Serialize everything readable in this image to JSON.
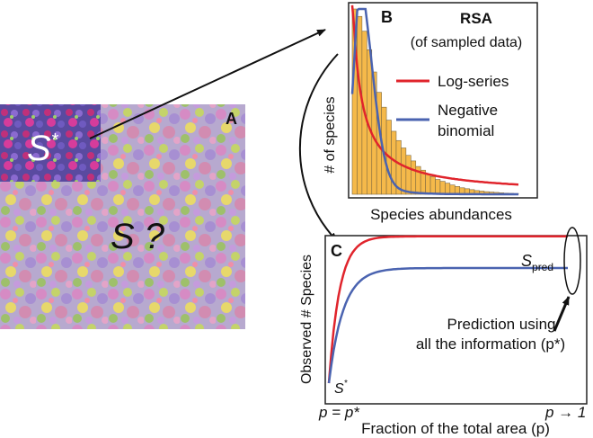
{
  "panel_a": {
    "label": "A",
    "subarea_symbol": "S",
    "subarea_superscript": "*",
    "total_symbol": "S ?"
  },
  "panel_b": {
    "label": "B",
    "title": "RSA",
    "subtitle": "(of sampled data)",
    "ylabel": "# of species",
    "xlabel": "Species abundances",
    "legend": [
      {
        "name": "Log-series",
        "color": "#e0242c"
      },
      {
        "name": "Negative binomial",
        "color": "#4a63b0",
        "line1": "Negative",
        "line2": "binomial"
      }
    ],
    "bar_color": "#f5b94a",
    "bar_heights": [
      1.0,
      0.96,
      0.88,
      0.78,
      0.66,
      0.55,
      0.47,
      0.4,
      0.34,
      0.29,
      0.25,
      0.21,
      0.18,
      0.15,
      0.13,
      0.11,
      0.095,
      0.08,
      0.07,
      0.06,
      0.05,
      0.042,
      0.035,
      0.03,
      0.025,
      0.02,
      0.017,
      0.014,
      0.012,
      0.01,
      0.008,
      0.006,
      0.005,
      0.004
    ]
  },
  "panel_c": {
    "label": "C",
    "ylabel": "Observed # Species",
    "xlabel": "Fraction of the total area (p)",
    "s_pred_base": "S",
    "s_pred_sub": "pred",
    "s_star_base": "S",
    "s_star_sup": "*",
    "annotation_line1": "Prediction using",
    "annotation_line2": "all the  information (p*)",
    "x_left_tick": "p = p*",
    "x_right_tick": "p → 1",
    "red_plateau": 0.82,
    "blue_plateau": 0.6
  }
}
